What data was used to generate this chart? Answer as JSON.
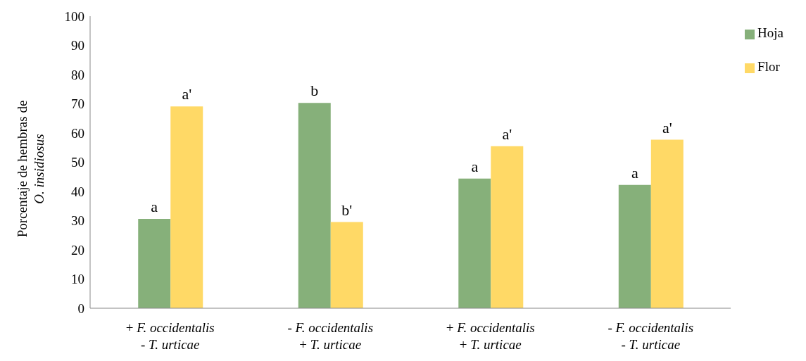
{
  "chart_data": {
    "type": "bar",
    "ylabel": "Porcentaje de hembras de\nO. insidiosus",
    "categories": [
      "+ F. occidentalis\n- T. urticae",
      "- F. occidentalis\n+ T. urticae",
      "+ F. occidentalis\n+ T. urticae",
      "- F. occidentalis\n- T. urticae"
    ],
    "series": [
      {
        "name": "Hoja",
        "color": "#86b07a",
        "values": [
          30.6,
          70.3,
          44.4,
          42.2
        ]
      },
      {
        "name": "Flor",
        "color": "#ffd966",
        "values": [
          69.1,
          29.5,
          55.5,
          57.7
        ]
      }
    ],
    "ylim": [
      0,
      100
    ],
    "yticks": [
      0,
      10,
      20,
      30,
      40,
      50,
      60,
      70,
      80,
      90,
      100
    ],
    "grid": false,
    "legend": "top right",
    "annotations": [
      {
        "text": "a",
        "x": "+ F. occidentalis\n- T. urticae",
        "y": 30.6
      },
      {
        "text": "a'",
        "x": "+ F. occidentalis\n- T. urticae",
        "y": 69.1
      },
      {
        "text": "b",
        "x": "- F. occidentalis\n+ T. urticae",
        "y": 70.3
      },
      {
        "text": "b'",
        "x": "- F. occidentalis\n+ T. urticae",
        "y": 29.5
      },
      {
        "text": "a",
        "x": "+ F. occidentalis\n+ T. urticae",
        "y": 44.4
      },
      {
        "text": "a'",
        "x": "+ F. occidentalis\n+ T. urticae",
        "y": 55.5
      },
      {
        "text": "a",
        "x": "- F. occidentalis\n- T. urticae",
        "y": 42.2
      },
      {
        "text": "a'",
        "x": "- F. occidentalis\n- T. urticae",
        "y": 57.7
      }
    ]
  }
}
